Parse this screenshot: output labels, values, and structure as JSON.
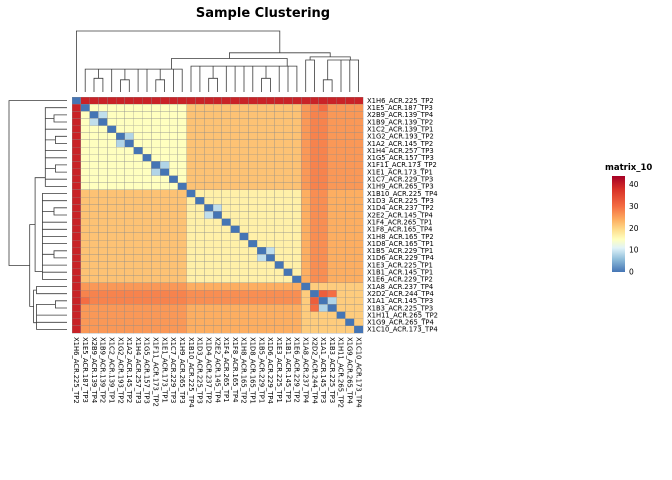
{
  "chart_data": {
    "type": "heatmap",
    "title": "Sample Clustering",
    "legend_title": "matrix_10",
    "legend_ticks": [
      0,
      10,
      20,
      30,
      40
    ],
    "legend_range": [
      0,
      44
    ],
    "row_dendrogram": true,
    "col_dendrogram": true,
    "color_stops": [
      [
        0,
        "#4575B4"
      ],
      [
        6,
        "#91BFDB"
      ],
      [
        11,
        "#E0F3F8"
      ],
      [
        15,
        "#FFFFBF"
      ],
      [
        19,
        "#FEE090"
      ],
      [
        24,
        "#FDAE61"
      ],
      [
        30,
        "#F46D43"
      ],
      [
        38,
        "#D73027"
      ],
      [
        45,
        "#A50026"
      ]
    ],
    "samples": [
      "X1H6_ACR.225_TP2",
      "X1E5_ACR.187_TP3",
      "X2B9_ACR.139_TP4",
      "X1B9_ACR.139_TP2",
      "X1C2_ACR.139_TP1",
      "X1G2_ACR.193_TP2",
      "X1A2_ACR.145_TP2",
      "X1H4_ACR.257_TP3",
      "X1G5_ACR.157_TP3",
      "X1F11_ACR.173_TP2",
      "X1E1_ACR.173_TP1",
      "X1C7_ACR.229_TP3",
      "X1H9_ACR.265_TP3",
      "X1B10_ACR.225_TP4",
      "X1D3_ACR.225_TP3",
      "X1D4_ACR.237_TP2",
      "X2E2_ACR.145_TP4",
      "X1F4_ACR.265_TP1",
      "X1F8_ACR.165_TP4",
      "X1H8_ACR.165_TP2",
      "X1D8_ACR.165_TP1",
      "X1B5_ACR.229_TP1",
      "X1D6_ACR.229_TP4",
      "X1E3_ACR.225_TP1",
      "X1B1_ACR.145_TP1",
      "X1E6_ACR.229_TP2",
      "X1A8_ACR.237_TP4",
      "X2D2_ACR.244_TP4",
      "X1A1_ACR.145_TP3",
      "X1B3_ACR.225_TP3",
      "X1H11_ACR.265_TP2",
      "X1G9_ACR.265_TP4",
      "X1C10_ACR.173_TP4"
    ],
    "matrix": [
      [
        0,
        40,
        40,
        40,
        40,
        40,
        40,
        40,
        40,
        40,
        40,
        40,
        40,
        40,
        40,
        40,
        40,
        40,
        40,
        40,
        40,
        40,
        40,
        40,
        40,
        40,
        40,
        40,
        40,
        40,
        40,
        40,
        40
      ],
      [
        40,
        0,
        15,
        15,
        15,
        15,
        15,
        15,
        15,
        15,
        15,
        15,
        15,
        22,
        22,
        22,
        22,
        22,
        22,
        22,
        22,
        22,
        22,
        22,
        22,
        22,
        26,
        28,
        30,
        26,
        26,
        26,
        26
      ],
      [
        40,
        15,
        0,
        9,
        15,
        15,
        15,
        15,
        15,
        15,
        15,
        15,
        15,
        22,
        22,
        22,
        22,
        22,
        22,
        22,
        22,
        22,
        22,
        22,
        22,
        22,
        26,
        28,
        28,
        26,
        26,
        26,
        26
      ],
      [
        40,
        15,
        9,
        0,
        15,
        15,
        15,
        15,
        15,
        15,
        15,
        15,
        15,
        22,
        22,
        22,
        22,
        22,
        22,
        22,
        22,
        22,
        22,
        22,
        22,
        22,
        26,
        28,
        28,
        26,
        26,
        26,
        26
      ],
      [
        40,
        15,
        15,
        15,
        0,
        15,
        15,
        15,
        15,
        15,
        15,
        15,
        15,
        22,
        22,
        22,
        22,
        22,
        22,
        22,
        22,
        22,
        22,
        22,
        22,
        22,
        26,
        28,
        28,
        26,
        26,
        26,
        26
      ],
      [
        40,
        15,
        15,
        15,
        15,
        0,
        8,
        15,
        15,
        15,
        15,
        15,
        15,
        22,
        22,
        22,
        22,
        22,
        22,
        22,
        22,
        22,
        22,
        22,
        22,
        22,
        26,
        28,
        28,
        26,
        26,
        26,
        26
      ],
      [
        40,
        15,
        15,
        15,
        15,
        8,
        0,
        15,
        15,
        15,
        15,
        15,
        15,
        22,
        22,
        22,
        22,
        22,
        22,
        22,
        22,
        22,
        22,
        22,
        22,
        22,
        26,
        28,
        28,
        26,
        26,
        26,
        26
      ],
      [
        40,
        15,
        15,
        15,
        15,
        15,
        15,
        0,
        15,
        15,
        15,
        15,
        15,
        22,
        22,
        22,
        22,
        22,
        22,
        22,
        22,
        22,
        22,
        22,
        22,
        22,
        26,
        28,
        28,
        26,
        26,
        26,
        26
      ],
      [
        40,
        15,
        15,
        15,
        15,
        15,
        15,
        15,
        0,
        15,
        15,
        15,
        15,
        22,
        22,
        22,
        22,
        22,
        22,
        22,
        22,
        22,
        22,
        22,
        22,
        22,
        26,
        28,
        28,
        26,
        26,
        26,
        26
      ],
      [
        40,
        15,
        15,
        15,
        15,
        15,
        15,
        15,
        15,
        0,
        8,
        15,
        15,
        22,
        22,
        22,
        22,
        22,
        22,
        22,
        22,
        22,
        22,
        22,
        22,
        22,
        26,
        28,
        28,
        26,
        26,
        26,
        26
      ],
      [
        40,
        15,
        15,
        15,
        15,
        15,
        15,
        15,
        15,
        8,
        0,
        15,
        15,
        22,
        22,
        22,
        22,
        22,
        22,
        22,
        22,
        22,
        22,
        22,
        22,
        22,
        26,
        28,
        28,
        26,
        26,
        26,
        26
      ],
      [
        40,
        15,
        15,
        15,
        15,
        15,
        15,
        15,
        15,
        15,
        15,
        0,
        15,
        22,
        22,
        22,
        22,
        22,
        22,
        22,
        22,
        22,
        22,
        22,
        22,
        22,
        26,
        28,
        28,
        26,
        26,
        26,
        26
      ],
      [
        40,
        15,
        15,
        15,
        15,
        15,
        15,
        15,
        15,
        15,
        15,
        15,
        0,
        22,
        22,
        22,
        22,
        22,
        22,
        22,
        22,
        22,
        22,
        22,
        22,
        22,
        26,
        28,
        28,
        26,
        26,
        26,
        26
      ],
      [
        40,
        22,
        22,
        22,
        22,
        22,
        22,
        22,
        22,
        22,
        22,
        22,
        22,
        0,
        17,
        17,
        17,
        17,
        17,
        17,
        17,
        17,
        17,
        17,
        17,
        17,
        24,
        27,
        27,
        24,
        24,
        24,
        24
      ],
      [
        40,
        22,
        22,
        22,
        22,
        22,
        22,
        22,
        22,
        22,
        22,
        22,
        22,
        17,
        0,
        17,
        17,
        17,
        17,
        17,
        17,
        17,
        17,
        17,
        17,
        17,
        24,
        27,
        27,
        24,
        24,
        24,
        24
      ],
      [
        40,
        22,
        22,
        22,
        22,
        22,
        22,
        22,
        22,
        22,
        22,
        22,
        22,
        17,
        17,
        0,
        9,
        17,
        17,
        17,
        17,
        17,
        17,
        17,
        17,
        17,
        24,
        27,
        27,
        24,
        24,
        24,
        24
      ],
      [
        40,
        22,
        22,
        22,
        22,
        22,
        22,
        22,
        22,
        22,
        22,
        22,
        22,
        17,
        17,
        9,
        0,
        17,
        17,
        17,
        17,
        17,
        17,
        17,
        17,
        17,
        24,
        27,
        27,
        24,
        24,
        24,
        24
      ],
      [
        40,
        22,
        22,
        22,
        22,
        22,
        22,
        22,
        22,
        22,
        22,
        22,
        22,
        17,
        17,
        17,
        17,
        0,
        17,
        17,
        17,
        17,
        17,
        17,
        17,
        17,
        24,
        27,
        27,
        24,
        24,
        24,
        24
      ],
      [
        40,
        22,
        22,
        22,
        22,
        22,
        22,
        22,
        22,
        22,
        22,
        22,
        22,
        17,
        17,
        17,
        17,
        17,
        0,
        17,
        17,
        17,
        17,
        17,
        17,
        17,
        24,
        27,
        27,
        24,
        24,
        24,
        24
      ],
      [
        40,
        22,
        22,
        22,
        22,
        22,
        22,
        22,
        22,
        22,
        22,
        22,
        22,
        17,
        17,
        17,
        17,
        17,
        17,
        0,
        17,
        17,
        17,
        17,
        17,
        17,
        24,
        27,
        27,
        24,
        24,
        24,
        24
      ],
      [
        40,
        22,
        22,
        22,
        22,
        22,
        22,
        22,
        22,
        22,
        22,
        22,
        22,
        17,
        17,
        17,
        17,
        17,
        17,
        17,
        0,
        17,
        17,
        17,
        17,
        17,
        24,
        27,
        27,
        24,
        24,
        24,
        24
      ],
      [
        40,
        22,
        22,
        22,
        22,
        22,
        22,
        22,
        22,
        22,
        22,
        22,
        22,
        17,
        17,
        17,
        17,
        17,
        17,
        17,
        17,
        0,
        9,
        17,
        17,
        17,
        24,
        27,
        27,
        24,
        24,
        24,
        24
      ],
      [
        40,
        22,
        22,
        22,
        22,
        22,
        22,
        22,
        22,
        22,
        22,
        22,
        22,
        17,
        17,
        17,
        17,
        17,
        17,
        17,
        17,
        9,
        0,
        17,
        17,
        17,
        24,
        27,
        27,
        24,
        24,
        24,
        24
      ],
      [
        40,
        22,
        22,
        22,
        22,
        22,
        22,
        22,
        22,
        22,
        22,
        22,
        22,
        17,
        17,
        17,
        17,
        17,
        17,
        17,
        17,
        17,
        17,
        0,
        17,
        17,
        24,
        27,
        27,
        24,
        24,
        24,
        24
      ],
      [
        40,
        22,
        22,
        22,
        22,
        22,
        22,
        22,
        22,
        22,
        22,
        22,
        22,
        17,
        17,
        17,
        17,
        17,
        17,
        17,
        17,
        17,
        17,
        17,
        0,
        17,
        24,
        27,
        27,
        24,
        24,
        24,
        24
      ],
      [
        40,
        22,
        22,
        22,
        22,
        22,
        22,
        22,
        22,
        22,
        22,
        22,
        22,
        17,
        17,
        17,
        17,
        17,
        17,
        17,
        17,
        17,
        17,
        17,
        17,
        0,
        24,
        27,
        27,
        24,
        24,
        24,
        24
      ],
      [
        40,
        26,
        26,
        26,
        26,
        26,
        26,
        26,
        26,
        26,
        26,
        26,
        26,
        24,
        24,
        24,
        24,
        24,
        24,
        24,
        24,
        24,
        24,
        24,
        24,
        24,
        0,
        21,
        21,
        21,
        21,
        21,
        21
      ],
      [
        40,
        28,
        28,
        28,
        28,
        28,
        28,
        28,
        28,
        28,
        28,
        28,
        28,
        27,
        27,
        27,
        27,
        27,
        27,
        27,
        27,
        27,
        27,
        27,
        27,
        27,
        21,
        0,
        32,
        30,
        21,
        21,
        21
      ],
      [
        40,
        30,
        28,
        28,
        28,
        28,
        28,
        28,
        28,
        28,
        28,
        28,
        28,
        27,
        27,
        27,
        27,
        27,
        27,
        27,
        27,
        27,
        27,
        27,
        27,
        27,
        21,
        32,
        0,
        8,
        21,
        21,
        21
      ],
      [
        40,
        26,
        26,
        26,
        26,
        26,
        26,
        26,
        26,
        26,
        26,
        26,
        26,
        24,
        24,
        24,
        24,
        24,
        24,
        24,
        24,
        24,
        24,
        24,
        24,
        24,
        21,
        30,
        8,
        0,
        21,
        21,
        21
      ],
      [
        40,
        26,
        26,
        26,
        26,
        26,
        26,
        26,
        26,
        26,
        26,
        26,
        26,
        24,
        24,
        24,
        24,
        24,
        24,
        24,
        24,
        24,
        24,
        24,
        24,
        24,
        21,
        21,
        21,
        21,
        0,
        21,
        21
      ],
      [
        40,
        26,
        26,
        26,
        26,
        26,
        26,
        26,
        26,
        26,
        26,
        26,
        26,
        24,
        24,
        24,
        24,
        24,
        24,
        24,
        24,
        24,
        24,
        24,
        24,
        24,
        21,
        21,
        21,
        21,
        21,
        0,
        21
      ],
      [
        40,
        26,
        26,
        26,
        26,
        26,
        26,
        26,
        26,
        26,
        26,
        26,
        26,
        24,
        24,
        24,
        24,
        24,
        24,
        24,
        24,
        24,
        24,
        24,
        24,
        24,
        21,
        21,
        21,
        21,
        21,
        21,
        0
      ]
    ]
  }
}
